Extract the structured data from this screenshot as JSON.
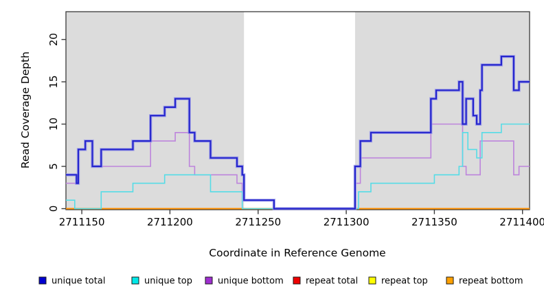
{
  "chart_data": {
    "type": "line",
    "subtype": "step-after-coverage-plot",
    "title": "",
    "xlabel": "Coordinate in Reference Genome",
    "ylabel": "Read Coverage Depth",
    "xlim": [
      2711141,
      2711404
    ],
    "ylim": [
      0,
      23.3
    ],
    "x_ticks": [
      2711150,
      2711200,
      2711250,
      2711300,
      2711350,
      2711400
    ],
    "y_ticks": [
      0,
      5,
      10,
      15,
      20
    ],
    "grid": false,
    "legend_position": "bottom",
    "plot_bg": "#FFFFFF",
    "band_color": "#DCDCDC",
    "frame_color": "#3A3A3A",
    "background_bands": [
      {
        "x0": 2711141,
        "x1": 2711242
      },
      {
        "x0": 2711305,
        "x1": 2711404
      }
    ],
    "series": [
      {
        "name": "unique total",
        "color": "#2525CD",
        "halo": "#9A9AE8",
        "legend_color": "#0000D0",
        "width": 2.2,
        "steps": [
          [
            2711141,
            4
          ],
          [
            2711147,
            3
          ],
          [
            2711148,
            7
          ],
          [
            2711152,
            8
          ],
          [
            2711156,
            5
          ],
          [
            2711161,
            7
          ],
          [
            2711179,
            8
          ],
          [
            2711189,
            11
          ],
          [
            2711197,
            12
          ],
          [
            2711203,
            13
          ],
          [
            2711211,
            9
          ],
          [
            2711214,
            8
          ],
          [
            2711223,
            6
          ],
          [
            2711238,
            5
          ],
          [
            2711241,
            4
          ],
          [
            2711242,
            1
          ],
          [
            2711259,
            0
          ],
          [
            2711305,
            5
          ],
          [
            2711308,
            8
          ],
          [
            2711314,
            9
          ],
          [
            2711348,
            13
          ],
          [
            2711351,
            14
          ],
          [
            2711364,
            15
          ],
          [
            2711366,
            10
          ],
          [
            2711368,
            13
          ],
          [
            2711372,
            11
          ],
          [
            2711374,
            10
          ],
          [
            2711376,
            14
          ],
          [
            2711377,
            17
          ],
          [
            2711388,
            18
          ],
          [
            2711395,
            14
          ],
          [
            2711398,
            15
          ],
          [
            2711404,
            15
          ]
        ]
      },
      {
        "name": "unique top",
        "color": "#55DCE6",
        "legend_color": "#00E8E8",
        "width": 1.6,
        "steps": [
          [
            2711141,
            1
          ],
          [
            2711146,
            0
          ],
          [
            2711161,
            2
          ],
          [
            2711179,
            3
          ],
          [
            2711197,
            4
          ],
          [
            2711223,
            2
          ],
          [
            2711241,
            0
          ],
          [
            2711307,
            2
          ],
          [
            2711314,
            3
          ],
          [
            2711350,
            4
          ],
          [
            2711364,
            5
          ],
          [
            2711366,
            9
          ],
          [
            2711369,
            7
          ],
          [
            2711374,
            6
          ],
          [
            2711377,
            9
          ],
          [
            2711388,
            10
          ],
          [
            2711404,
            10
          ]
        ]
      },
      {
        "name": "unique bottom",
        "color": "#BD84DC",
        "legend_color": "#9F2FD0",
        "width": 1.6,
        "steps": [
          [
            2711141,
            3
          ],
          [
            2711148,
            7
          ],
          [
            2711152,
            8
          ],
          [
            2711156,
            5
          ],
          [
            2711189,
            8
          ],
          [
            2711203,
            9
          ],
          [
            2711211,
            5
          ],
          [
            2711214,
            4
          ],
          [
            2711238,
            3
          ],
          [
            2711241,
            2
          ],
          [
            2711242,
            1
          ],
          [
            2711259,
            0
          ],
          [
            2711305,
            3
          ],
          [
            2711308,
            6
          ],
          [
            2711348,
            10
          ],
          [
            2711366,
            5
          ],
          [
            2711368,
            4
          ],
          [
            2711376,
            8
          ],
          [
            2711395,
            4
          ],
          [
            2711398,
            5
          ],
          [
            2711404,
            5
          ]
        ]
      },
      {
        "name": "repeat total",
        "color": "#E86060",
        "legend_color": "#EE0000",
        "width": 1.5,
        "steps": [
          [
            2711141,
            0
          ],
          [
            2711404,
            0
          ]
        ]
      },
      {
        "name": "repeat top",
        "color": "#FFE800",
        "legend_color": "#FFFF00",
        "width": 1.5,
        "steps": [
          [
            2711141,
            0
          ],
          [
            2711404,
            0
          ]
        ]
      },
      {
        "name": "repeat bottom",
        "color": "#FF9000",
        "legend_color": "#FFA000",
        "width": 2.0,
        "steps": [
          [
            2711141,
            0
          ],
          [
            2711404,
            0
          ]
        ]
      }
    ]
  }
}
